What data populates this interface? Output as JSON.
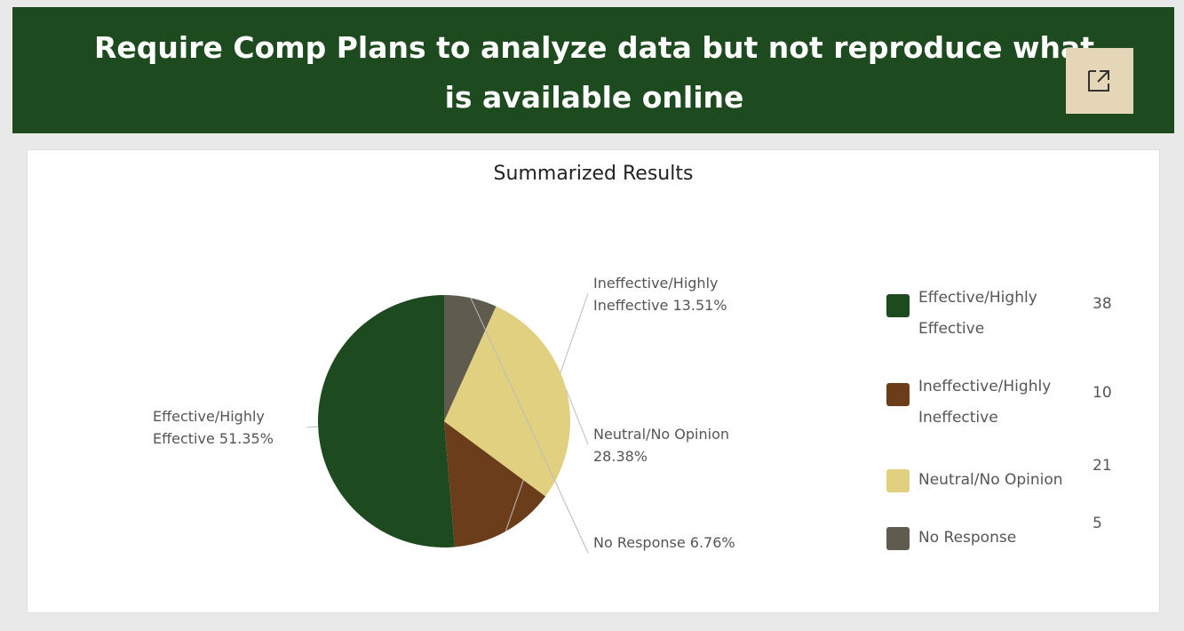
{
  "header": {
    "title": "Require Comp Plans to analyze data but not reproduce what is available online"
  },
  "chart_data": {
    "type": "pie",
    "title": "Summarized Results",
    "categories": [
      "Effective/Highly Effective",
      "Ineffective/Highly Ineffective",
      "Neutral/No Opinion",
      "No Response"
    ],
    "values": [
      38,
      10,
      21,
      5
    ],
    "percent_labels": [
      "51.35%",
      "13.51%",
      "28.38%",
      "6.76%"
    ],
    "colors": [
      "#1e4a1f",
      "#6b3d1a",
      "#e0d080",
      "#5f5b4f"
    ],
    "legend": "right"
  }
}
